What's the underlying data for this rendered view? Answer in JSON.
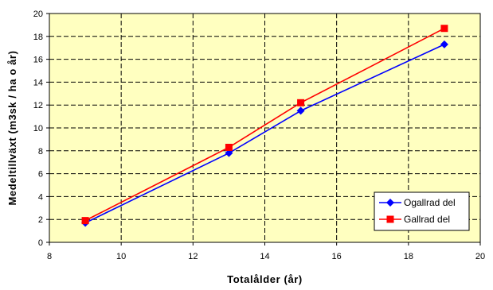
{
  "chart_data": {
    "type": "line",
    "xlabel": "Totalålder (år)",
    "ylabel": "Medeltillväxt (m3sk / ha o år)",
    "xlim": [
      8,
      20
    ],
    "ylim": [
      0,
      20
    ],
    "xticks": [
      8,
      10,
      12,
      14,
      16,
      18,
      20
    ],
    "yticks": [
      0,
      2,
      4,
      6,
      8,
      10,
      12,
      14,
      16,
      18,
      20
    ],
    "xtick_labels": [
      "8",
      "10",
      "12",
      "14",
      "16",
      "18",
      "20"
    ],
    "ytick_labels": [
      "0",
      "2",
      "4",
      "6",
      "8",
      "10",
      "12",
      "14",
      "16",
      "18",
      "20"
    ],
    "grid": true,
    "legend_position": "bottom-right",
    "series": [
      {
        "name": "Ogallrad del",
        "color": "#0000ff",
        "marker": "diamond",
        "points": [
          [
            9,
            1.7
          ],
          [
            13,
            7.8
          ],
          [
            15,
            11.5
          ],
          [
            19,
            17.3
          ]
        ]
      },
      {
        "name": "Gallrad del",
        "color": "#ff0000",
        "marker": "square",
        "points": [
          [
            9,
            1.9
          ],
          [
            13,
            8.3
          ],
          [
            15,
            12.2
          ],
          [
            19,
            18.7
          ]
        ]
      }
    ],
    "plot_background": "#ffffc0"
  }
}
